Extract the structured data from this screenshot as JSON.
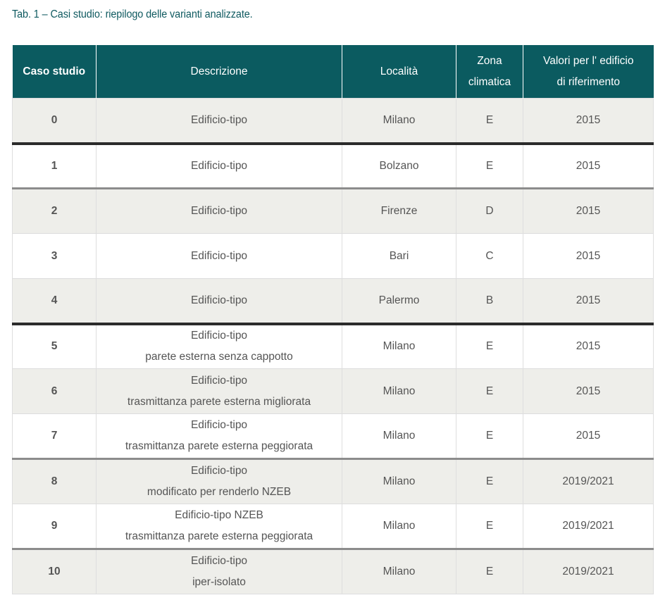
{
  "caption": "Tab. 1 – Casi studio: riepilogo delle varianti analizzate.",
  "header": {
    "col1": "Caso studio",
    "col2": "Descrizione",
    "col3": "Località",
    "col4_line1": "Zona",
    "col4_line2": "climatica",
    "col5_line1": "Valori per l' edificio",
    "col5_line2": "di riferimento"
  },
  "rows": [
    {
      "caso": "0",
      "desc1": "Edificio-tipo",
      "desc2": "",
      "localita": "Milano",
      "zona": "E",
      "valori": "2015"
    },
    {
      "caso": "1",
      "desc1": "Edificio-tipo",
      "desc2": "",
      "localita": "Bolzano",
      "zona": "E",
      "valori": "2015"
    },
    {
      "caso": "2",
      "desc1": "Edificio-tipo",
      "desc2": "",
      "localita": "Firenze",
      "zona": "D",
      "valori": "2015"
    },
    {
      "caso": "3",
      "desc1": "Edificio-tipo",
      "desc2": "",
      "localita": "Bari",
      "zona": "C",
      "valori": "2015"
    },
    {
      "caso": "4",
      "desc1": "Edificio-tipo",
      "desc2": "",
      "localita": "Palermo",
      "zona": "B",
      "valori": "2015"
    },
    {
      "caso": "5",
      "desc1": "Edificio-tipo",
      "desc2": "parete esterna senza cappotto",
      "localita": "Milano",
      "zona": "E",
      "valori": "2015"
    },
    {
      "caso": "6",
      "desc1": "Edificio-tipo",
      "desc2": "trasmittanza parete esterna migliorata",
      "localita": "Milano",
      "zona": "E",
      "valori": "2015"
    },
    {
      "caso": "7",
      "desc1": "Edificio-tipo",
      "desc2": "trasmittanza parete esterna peggiorata",
      "localita": "Milano",
      "zona": "E",
      "valori": "2015"
    },
    {
      "caso": "8",
      "desc1": "Edificio-tipo",
      "desc2": "modificato per renderlo NZEB",
      "localita": "Milano",
      "zona": "E",
      "valori": "2019/2021"
    },
    {
      "caso": "9",
      "desc1": "Edificio-tipo NZEB",
      "desc2": "trasmittanza parete esterna peggiorata",
      "localita": "Milano",
      "zona": "E",
      "valori": "2019/2021"
    },
    {
      "caso": "10",
      "desc1": "Edificio-tipo",
      "desc2": "iper-isolato",
      "localita": "Milano",
      "zona": "E",
      "valori": "2019/2021"
    }
  ]
}
